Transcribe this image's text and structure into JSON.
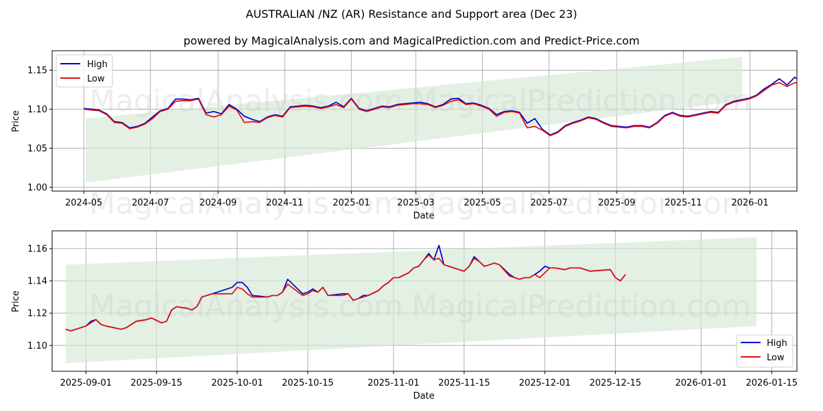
{
  "header": {
    "title": "AUSTRALIAN /NZ (AR) Resistance and Support area (Dec 23)",
    "subtitle": "powered by MagicalAnalysis.com and MagicalPrediction.com and Predict-Price.com"
  },
  "watermarks": [
    "MagicalAnalysis.com",
    "MagicalPrediction.com"
  ],
  "colors": {
    "high": "#0000cc",
    "low": "#dd1111",
    "band": "#d4e8d4",
    "grid": "#b0b0b0"
  },
  "chart_data": [
    {
      "type": "line",
      "title": "Full history",
      "xlabel": "Date",
      "ylabel": "Price",
      "ylim": [
        0.995,
        1.175
      ],
      "yticks": [
        "1.00",
        "1.05",
        "1.10",
        "1.15"
      ],
      "ytick_values": [
        1.0,
        1.05,
        1.1,
        1.15
      ],
      "xticks": [
        "2024-05",
        "2024-07",
        "2024-09",
        "2024-11",
        "2025-01",
        "2025-03",
        "2025-05",
        "2025-07",
        "2025-09",
        "2025-11",
        "2026-01"
      ],
      "xtick_index": [
        0,
        61,
        123,
        184,
        245,
        304,
        365,
        426,
        488,
        549,
        610
      ],
      "xlim_index": [
        -29,
        653
      ],
      "grid": true,
      "legend": {
        "position": "upper left",
        "entries": [
          "High",
          "Low"
        ]
      },
      "band": {
        "x_start_index": 2,
        "x_end_index": 603,
        "lower_start": 1.006,
        "lower_end": 1.111,
        "upper_start": 1.088,
        "upper_end": 1.167
      },
      "series": [
        {
          "name": "High",
          "step_days": 7,
          "values": [
            1.101,
            1.1,
            1.099,
            1.094,
            1.084,
            1.083,
            1.076,
            1.078,
            1.082,
            1.09,
            1.098,
            1.101,
            1.113,
            1.113,
            1.112,
            1.114,
            1.095,
            1.097,
            1.094,
            1.106,
            1.1,
            1.091,
            1.087,
            1.084,
            1.09,
            1.093,
            1.091,
            1.103,
            1.104,
            1.105,
            1.104,
            1.102,
            1.104,
            1.109,
            1.103,
            1.114,
            1.101,
            1.098,
            1.101,
            1.104,
            1.103,
            1.106,
            1.107,
            1.108,
            1.109,
            1.107,
            1.103,
            1.106,
            1.113,
            1.114,
            1.107,
            1.108,
            1.105,
            1.101,
            1.093,
            1.097,
            1.098,
            1.096,
            1.082,
            1.088,
            1.074,
            1.067,
            1.071,
            1.079,
            1.083,
            1.086,
            1.09,
            1.088,
            1.083,
            1.079,
            1.078,
            1.077,
            1.079,
            1.079,
            1.077,
            1.083,
            1.092,
            1.096,
            1.092,
            1.091,
            1.093,
            1.095,
            1.097,
            1.096,
            1.106,
            1.11,
            1.112,
            1.114,
            1.118,
            1.126,
            1.132,
            1.139,
            1.131,
            1.141,
            1.134,
            1.131,
            1.135,
            1.139,
            1.145,
            1.151,
            1.162,
            1.149,
            1.153,
            1.146,
            1.142,
            1.145,
            1.148,
            1.146,
            1.14,
            1.144
          ]
        },
        {
          "name": "Low",
          "step_days": 7,
          "values": [
            1.1,
            1.099,
            1.098,
            1.093,
            1.083,
            1.082,
            1.075,
            1.077,
            1.081,
            1.088,
            1.097,
            1.1,
            1.11,
            1.111,
            1.111,
            1.113,
            1.093,
            1.09,
            1.093,
            1.104,
            1.099,
            1.083,
            1.084,
            1.083,
            1.089,
            1.092,
            1.09,
            1.102,
            1.103,
            1.104,
            1.103,
            1.101,
            1.103,
            1.106,
            1.102,
            1.113,
            1.1,
            1.097,
            1.1,
            1.103,
            1.102,
            1.105,
            1.106,
            1.107,
            1.107,
            1.106,
            1.102,
            1.105,
            1.11,
            1.112,
            1.106,
            1.107,
            1.104,
            1.1,
            1.091,
            1.096,
            1.097,
            1.095,
            1.076,
            1.078,
            1.073,
            1.066,
            1.07,
            1.078,
            1.082,
            1.085,
            1.089,
            1.087,
            1.082,
            1.078,
            1.077,
            1.076,
            1.078,
            1.078,
            1.076,
            1.082,
            1.091,
            1.095,
            1.091,
            1.09,
            1.092,
            1.094,
            1.096,
            1.095,
            1.105,
            1.109,
            1.111,
            1.113,
            1.117,
            1.124,
            1.131,
            1.134,
            1.129,
            1.134,
            1.132,
            1.13,
            1.134,
            1.138,
            1.144,
            1.15,
            1.153,
            1.148,
            1.152,
            1.146,
            1.141,
            1.144,
            1.147,
            1.146,
            1.139,
            1.144
          ]
        }
      ]
    },
    {
      "type": "line",
      "title": "Recent detail",
      "xlabel": "Date",
      "ylabel": "Price",
      "ylim": [
        1.084,
        1.171
      ],
      "yticks": [
        "1.10",
        "1.12",
        "1.14",
        "1.16"
      ],
      "ytick_values": [
        1.1,
        1.12,
        1.14,
        1.16
      ],
      "xticks": [
        "2025-09-01",
        "2025-09-15",
        "2025-10-01",
        "2025-10-15",
        "2025-11-01",
        "2025-11-15",
        "2025-12-01",
        "2025-12-15",
        "2026-01-01",
        "2026-01-15"
      ],
      "xtick_index": [
        4,
        18,
        34,
        48,
        65,
        79,
        95,
        109,
        126,
        140
      ],
      "xlim_index": [
        -2.7,
        145
      ],
      "grid": true,
      "legend": {
        "position": "lower right",
        "entries": [
          "High",
          "Low"
        ]
      },
      "band": {
        "x_start_index": 0,
        "x_end_index": 137,
        "lower_start": 1.089,
        "lower_end": 1.112,
        "upper_start": 1.15,
        "upper_end": 1.167
      },
      "series": [
        {
          "name": "High",
          "x": [
            0,
            1,
            4,
            5,
            6,
            7,
            8,
            11,
            12,
            14,
            16,
            17,
            19,
            20,
            21,
            22,
            24,
            25,
            26,
            27,
            28,
            29,
            33,
            34,
            35,
            36,
            37,
            40,
            41,
            42,
            43,
            44,
            47,
            48,
            49,
            50,
            51,
            52,
            55,
            56,
            57,
            58,
            59,
            60,
            62,
            63,
            64,
            65,
            66,
            68,
            69,
            70,
            71,
            72,
            73,
            74,
            75,
            76,
            79,
            80,
            81,
            82,
            83,
            84,
            85,
            86,
            88,
            89,
            90,
            91,
            92,
            93,
            94,
            95,
            96,
            97,
            99,
            100,
            102,
            104,
            108,
            109,
            110,
            111
          ],
          "values": [
            1.11,
            1.109,
            1.112,
            1.115,
            1.116,
            1.113,
            1.112,
            1.11,
            1.111,
            1.115,
            1.116,
            1.117,
            1.114,
            1.115,
            1.122,
            1.124,
            1.123,
            1.122,
            1.124,
            1.13,
            1.131,
            1.132,
            1.136,
            1.139,
            1.139,
            1.136,
            1.131,
            1.13,
            1.131,
            1.131,
            1.133,
            1.141,
            1.132,
            1.133,
            1.135,
            1.133,
            1.136,
            1.131,
            1.132,
            1.132,
            1.128,
            1.129,
            1.131,
            1.131,
            1.134,
            1.137,
            1.139,
            1.142,
            1.142,
            1.145,
            1.148,
            1.149,
            1.153,
            1.157,
            1.153,
            1.162,
            1.15,
            1.149,
            1.146,
            1.149,
            1.155,
            1.152,
            1.149,
            1.15,
            1.151,
            1.15,
            1.144,
            1.142,
            1.141,
            1.142,
            1.142,
            1.144,
            1.146,
            1.149,
            1.148,
            1.148,
            1.147,
            1.148,
            1.148,
            1.146,
            1.147,
            1.142,
            1.14,
            1.144
          ]
        },
        {
          "name": "Low",
          "x": [
            0,
            1,
            4,
            5,
            6,
            7,
            8,
            11,
            12,
            14,
            16,
            17,
            19,
            20,
            21,
            22,
            24,
            25,
            26,
            27,
            28,
            29,
            33,
            34,
            35,
            36,
            37,
            40,
            41,
            42,
            43,
            44,
            47,
            48,
            49,
            50,
            51,
            52,
            55,
            56,
            57,
            58,
            59,
            60,
            62,
            63,
            64,
            65,
            66,
            68,
            69,
            70,
            71,
            72,
            73,
            74,
            75,
            76,
            79,
            80,
            81,
            82,
            83,
            84,
            85,
            86,
            88,
            89,
            90,
            91,
            92,
            93,
            94,
            95,
            96,
            97,
            99,
            100,
            102,
            104,
            108,
            109,
            110,
            111
          ],
          "values": [
            1.11,
            1.109,
            1.112,
            1.114,
            1.116,
            1.113,
            1.112,
            1.11,
            1.111,
            1.115,
            1.116,
            1.117,
            1.114,
            1.115,
            1.122,
            1.124,
            1.123,
            1.122,
            1.124,
            1.13,
            1.131,
            1.132,
            1.132,
            1.136,
            1.135,
            1.132,
            1.13,
            1.13,
            1.131,
            1.131,
            1.133,
            1.138,
            1.131,
            1.132,
            1.134,
            1.133,
            1.136,
            1.131,
            1.131,
            1.132,
            1.128,
            1.129,
            1.13,
            1.131,
            1.134,
            1.137,
            1.139,
            1.142,
            1.142,
            1.145,
            1.148,
            1.149,
            1.153,
            1.156,
            1.153,
            1.154,
            1.15,
            1.149,
            1.146,
            1.149,
            1.154,
            1.152,
            1.149,
            1.15,
            1.151,
            1.15,
            1.143,
            1.142,
            1.141,
            1.142,
            1.142,
            1.144,
            1.142,
            1.145,
            1.148,
            1.148,
            1.147,
            1.148,
            1.148,
            1.146,
            1.147,
            1.142,
            1.14,
            1.144
          ]
        }
      ]
    }
  ]
}
